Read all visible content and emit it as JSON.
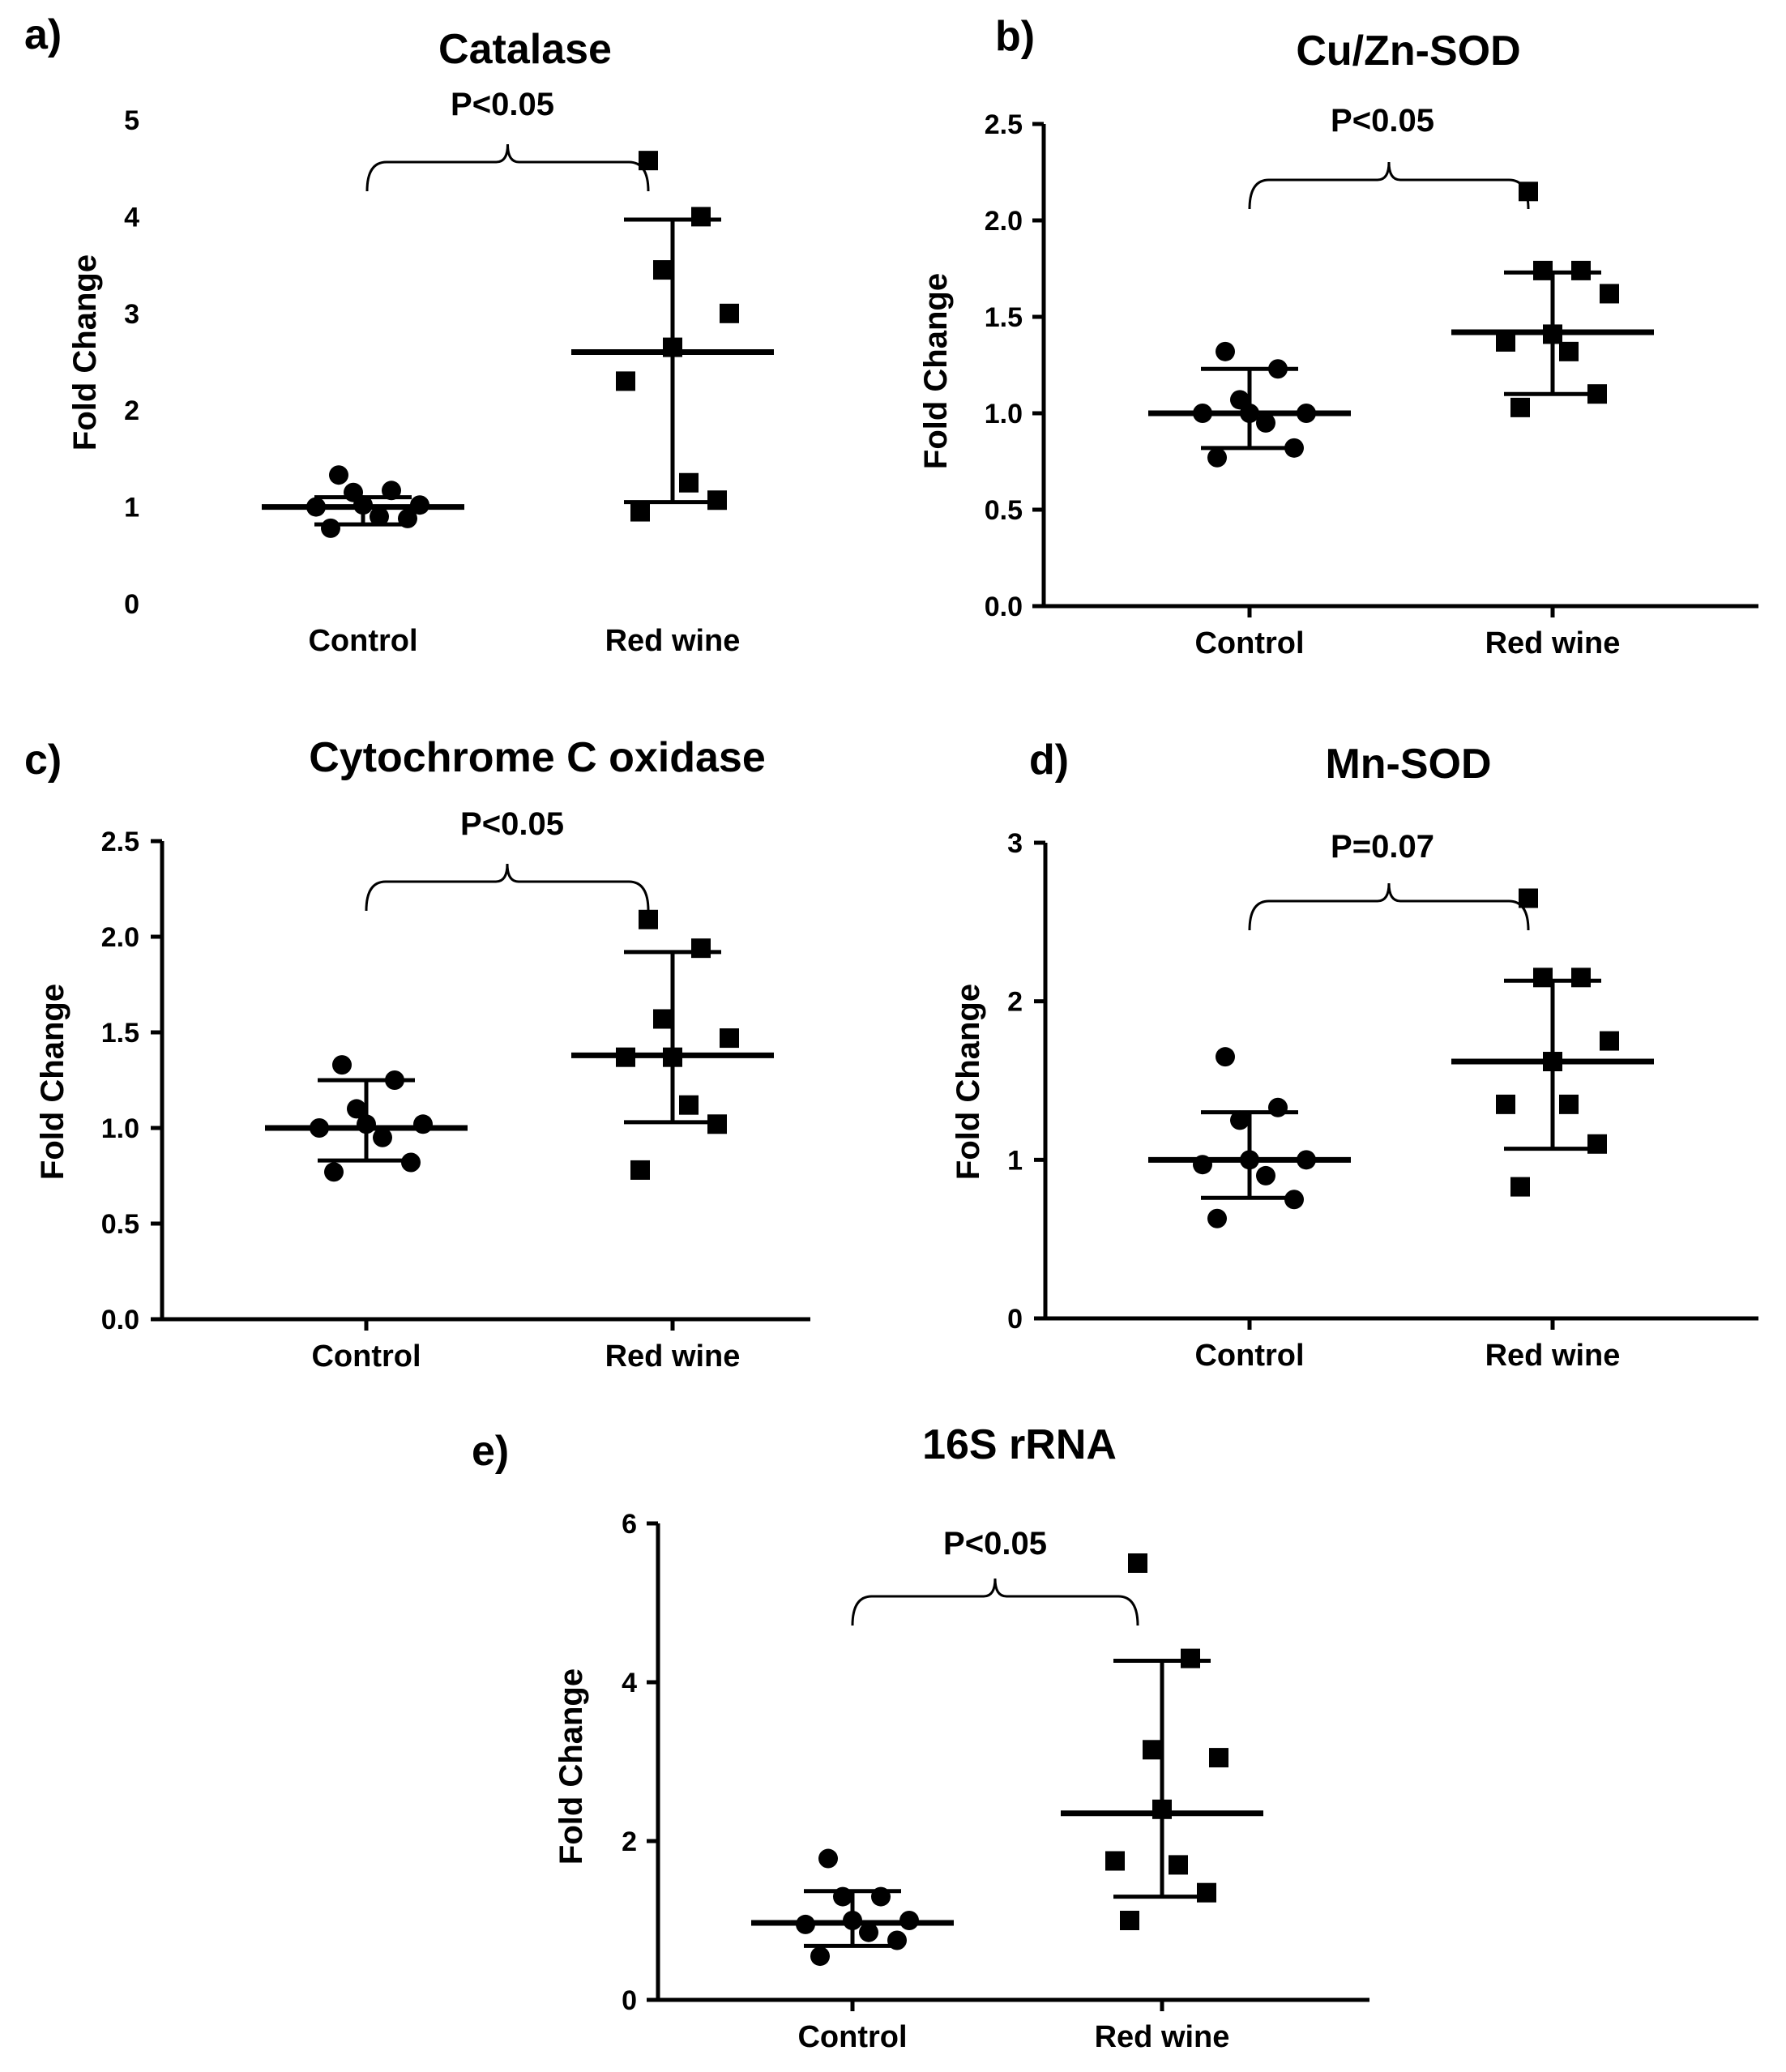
{
  "chart_data": [
    {
      "type": "scatter",
      "panel_label": "a)",
      "title": "Catalase",
      "ylabel": "Fold Change",
      "xlabel": "",
      "categories": [
        "Control",
        "Red wine"
      ],
      "ylim": [
        0,
        5
      ],
      "yticks": [
        "0",
        "1",
        "2",
        "3",
        "4",
        "5"
      ],
      "axis_lines": false,
      "annotation": "P<0.05",
      "series": [
        {
          "name": "Control",
          "marker": "circle",
          "values": [
            0.78,
            0.88,
            0.9,
            1.0,
            1.02,
            1.02,
            1.15,
            1.17,
            1.33
          ],
          "median": 1.0,
          "err_low": 0.82,
          "err_high": 1.1
        },
        {
          "name": "Red wine",
          "marker": "square",
          "values": [
            0.95,
            1.07,
            1.25,
            2.3,
            2.65,
            3.0,
            3.45,
            4.0,
            4.58
          ],
          "median": 2.6,
          "err_low": 1.05,
          "err_high": 3.97
        }
      ]
    },
    {
      "type": "scatter",
      "panel_label": "b)",
      "title": "Cu/Zn-SOD",
      "ylabel": "Fold Change",
      "xlabel": "",
      "categories": [
        "Control",
        "Red wine"
      ],
      "ylim": [
        0,
        2.5
      ],
      "yticks": [
        "0.0",
        "0.5",
        "1.0",
        "1.5",
        "2.0",
        "2.5"
      ],
      "axis_lines": true,
      "annotation": "P<0.05",
      "series": [
        {
          "name": "Control",
          "marker": "circle",
          "values": [
            0.77,
            0.82,
            0.95,
            1.0,
            1.0,
            1.0,
            1.07,
            1.23,
            1.32
          ],
          "median": 1.0,
          "err_low": 0.82,
          "err_high": 1.23
        },
        {
          "name": "Red wine",
          "marker": "square",
          "values": [
            1.03,
            1.1,
            1.32,
            1.37,
            1.41,
            1.62,
            1.74,
            1.74,
            2.15
          ],
          "median": 1.42,
          "err_low": 1.1,
          "err_high": 1.73
        }
      ]
    },
    {
      "type": "scatter",
      "panel_label": "c)",
      "title": "Cytochrome C oxidase",
      "ylabel": "Fold Change",
      "xlabel": "",
      "categories": [
        "Control",
        "Red wine"
      ],
      "ylim": [
        0,
        2.5
      ],
      "yticks": [
        "0.0",
        "0.5",
        "1.0",
        "1.5",
        "2.0",
        "2.5"
      ],
      "axis_lines": true,
      "annotation": "P<0.05",
      "series": [
        {
          "name": "Control",
          "marker": "circle",
          "values": [
            0.77,
            0.82,
            0.95,
            1.0,
            1.02,
            1.02,
            1.1,
            1.25,
            1.33
          ],
          "median": 1.0,
          "err_low": 0.83,
          "err_high": 1.25
        },
        {
          "name": "Red wine",
          "marker": "square",
          "values": [
            0.78,
            1.02,
            1.12,
            1.37,
            1.37,
            1.47,
            1.57,
            1.94,
            2.09
          ],
          "median": 1.38,
          "err_low": 1.03,
          "err_high": 1.92
        }
      ]
    },
    {
      "type": "scatter",
      "panel_label": "d)",
      "title": "Mn-SOD",
      "ylabel": "Fold Change",
      "xlabel": "",
      "categories": [
        "Control",
        "Red wine"
      ],
      "ylim": [
        0,
        3
      ],
      "yticks": [
        "0",
        "1",
        "2",
        "3"
      ],
      "axis_lines": true,
      "annotation": "P=0.07",
      "series": [
        {
          "name": "Control",
          "marker": "circle",
          "values": [
            0.63,
            0.75,
            0.9,
            0.97,
            1.0,
            1.0,
            1.25,
            1.33,
            1.65
          ],
          "median": 1.0,
          "err_low": 0.76,
          "err_high": 1.3
        },
        {
          "name": "Red wine",
          "marker": "square",
          "values": [
            0.83,
            1.1,
            1.35,
            1.35,
            1.62,
            1.75,
            2.15,
            2.15,
            2.65
          ],
          "median": 1.62,
          "err_low": 1.07,
          "err_high": 2.13
        }
      ]
    },
    {
      "type": "scatter",
      "panel_label": "e)",
      "title": "16S rRNA",
      "ylabel": "Fold Change",
      "xlabel": "",
      "categories": [
        "Control",
        "Red wine"
      ],
      "ylim": [
        0,
        6
      ],
      "yticks": [
        "0",
        "2",
        "4",
        "6"
      ],
      "axis_lines": true,
      "annotation": "P<0.05",
      "series": [
        {
          "name": "Control",
          "marker": "circle",
          "values": [
            0.55,
            0.75,
            0.85,
            0.95,
            1.0,
            1.0,
            1.3,
            1.3,
            1.78
          ],
          "median": 0.97,
          "err_low": 0.68,
          "err_high": 1.37
        },
        {
          "name": "Red wine",
          "marker": "square",
          "values": [
            1.0,
            1.35,
            1.7,
            1.75,
            2.4,
            3.05,
            3.15,
            4.3,
            5.5
          ],
          "median": 2.35,
          "err_low": 1.3,
          "err_high": 4.27
        }
      ]
    }
  ]
}
